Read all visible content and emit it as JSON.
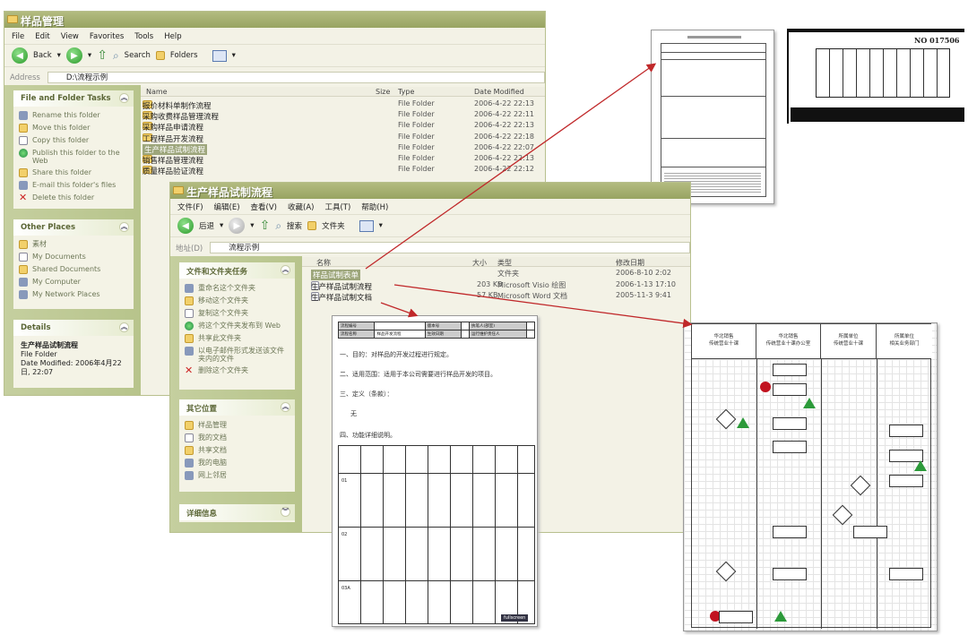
{
  "window1": {
    "title": "样品管理",
    "menu": [
      "File",
      "Edit",
      "View",
      "Favorites",
      "Tools",
      "Help"
    ],
    "toolbar": {
      "back": "Back",
      "search": "Search",
      "folders": "Folders"
    },
    "address_label": "Address",
    "address": "D:\\流程示例",
    "columns": {
      "name": "Name",
      "size": "Size",
      "type": "Type",
      "date": "Date Modified"
    },
    "files": [
      {
        "name": "报价材料单制作流程",
        "type": "File Folder",
        "date": "2006-4-22 22:13"
      },
      {
        "name": "采购收费样品管理流程",
        "type": "File Folder",
        "date": "2006-4-22 22:11"
      },
      {
        "name": "采购样品申请流程",
        "type": "File Folder",
        "date": "2006-4-22 22:13"
      },
      {
        "name": "工程样品开发流程",
        "type": "File Folder",
        "date": "2006-4-22 22:18"
      },
      {
        "name": "生产样品试制流程",
        "type": "File Folder",
        "date": "2006-4-22 22:07",
        "selected": true
      },
      {
        "name": "销售样品管理流程",
        "type": "File Folder",
        "date": "2006-4-22 22:13"
      },
      {
        "name": "质量样品验证流程",
        "type": "File Folder",
        "date": "2006-4-22 22:12"
      }
    ],
    "tasks": {
      "title": "File and Folder Tasks",
      "items": [
        "Rename this folder",
        "Move this folder",
        "Copy this folder",
        "Publish this folder to the Web",
        "Share this folder",
        "E-mail this folder's files",
        "Delete this folder"
      ]
    },
    "places": {
      "title": "Other Places",
      "items": [
        "素材",
        "My Documents",
        "Shared Documents",
        "My Computer",
        "My Network Places"
      ]
    },
    "details": {
      "title": "Details",
      "name": "生产样品试制流程",
      "type": "File Folder",
      "modified": "Date Modified: 2006年4月22日, 22:07"
    }
  },
  "window2": {
    "title": "生产样品试制流程",
    "menu": [
      "文件(F)",
      "编辑(E)",
      "查看(V)",
      "收藏(A)",
      "工具(T)",
      "帮助(H)"
    ],
    "toolbar": {
      "back": "后退",
      "search": "搜索",
      "folders": "文件夹"
    },
    "address_label": "地址(D)",
    "address": "流程示例",
    "columns": {
      "name": "名称",
      "size": "大小",
      "type": "类型",
      "date": "修改日期"
    },
    "files": [
      {
        "name": "样品试制表单",
        "size": "",
        "type": "文件夹",
        "date": "2006-8-10 2:02",
        "selected": true
      },
      {
        "name": "生产样品试制流程",
        "size": "203 KB",
        "type": "Microsoft Visio 绘图",
        "date": "2006-1-13 17:10"
      },
      {
        "name": "生产样品试制文档",
        "size": "57 KB",
        "type": "Microsoft Word 文档",
        "date": "2005-11-3 9:41"
      }
    ],
    "tasks": {
      "title": "文件和文件夹任务",
      "items": [
        "重命名这个文件夹",
        "移动这个文件夹",
        "复制这个文件夹",
        "将这个文件夹发布到 Web",
        "共享此文件夹",
        "以电子邮件形式发送该文件夹内的文件",
        "删除这个文件夹"
      ]
    },
    "places": {
      "title": "其它位置",
      "items": [
        "样品管理",
        "我的文档",
        "共享文档",
        "我的电脑",
        "网上邻居"
      ]
    },
    "details": {
      "title": "详细信息"
    }
  },
  "document": {
    "header": [
      [
        "流程编号",
        "",
        "版本号",
        "",
        "执笔人(部室)"
      ],
      [
        "流程名称",
        "样品开发流程",
        "生效日期",
        "",
        "运行维护责任人"
      ]
    ],
    "sections": [
      "一、目的：对样品的开发过程进行规定。",
      "二、适用范围：适用于本公司需要进行样品开发的项目。",
      "三、定义（条款）：",
      "无",
      "四、功能详细说明。"
    ],
    "rows": [
      "01",
      "02",
      "03A"
    ],
    "badge": "fullscreen"
  },
  "flowchart": {
    "columns": [
      [
        "华北销售",
        "传统营业十课"
      ],
      [
        "华北销售",
        "传统营业十课办公室"
      ],
      [
        "所属单位",
        "传统营业十课"
      ],
      [
        "所属单位",
        "相关业务部门"
      ]
    ]
  },
  "scan_invoice": {
    "number": "NO 017506"
  },
  "colors": {
    "titlebar": "#a3ad70",
    "panel": "#c1cc98",
    "arrow": "#c0282a",
    "selection": "#9da67b"
  }
}
